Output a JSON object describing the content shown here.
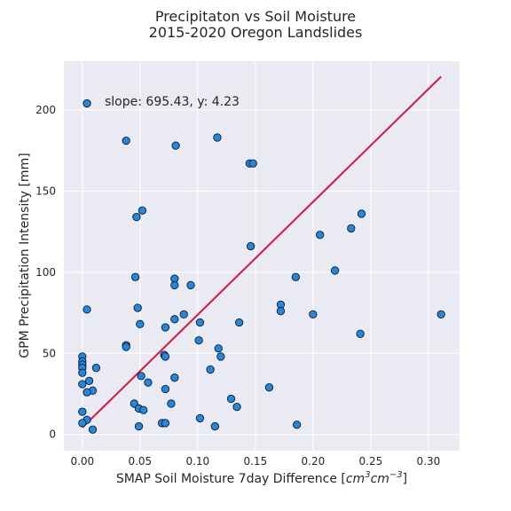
{
  "chart_data": {
    "type": "scatter",
    "title_line1": "Precipitaton vs Soil Moisture",
    "title_line2": "2015-2020 Oregon Landslides",
    "xlabel_text": "SMAP Soil Moisture 7day Difference [",
    "xlabel_unit": "cm",
    "xlabel_unit_sup1": "3",
    "xlabel_unit2": "cm",
    "xlabel_unit_sup2": "−3",
    "xlabel_end": "]",
    "ylabel": "GPM Precipitation Intensity [mm]",
    "annotation": "slope: 695.43, y: 4.23",
    "xlim": [
      -0.016,
      0.327
    ],
    "ylim": [
      -10,
      230
    ],
    "x_ticks": [
      0.0,
      0.05,
      0.1,
      0.15,
      0.2,
      0.25,
      0.3
    ],
    "x_tick_labels": [
      "0.00",
      "0.05",
      "0.10",
      "0.15",
      "0.20",
      "0.25",
      "0.30"
    ],
    "y_ticks": [
      0,
      50,
      100,
      150,
      200
    ],
    "y_tick_labels": [
      "0",
      "50",
      "100",
      "150",
      "200"
    ],
    "grid": true,
    "colors": {
      "background": "#eaeaf2",
      "grid": "#ffffff",
      "point_fill": "#1e88e5",
      "point_edge": "#1a1a1a",
      "fit_line": "#dc143c"
    },
    "fit_line": {
      "slope": 695.43,
      "intercept": 4.23,
      "x_range": [
        0.0,
        0.311
      ]
    },
    "points": [
      [
        0.004,
        204
      ],
      [
        0.038,
        181
      ],
      [
        0.081,
        178
      ],
      [
        0.117,
        183
      ],
      [
        0.145,
        167
      ],
      [
        0.148,
        167
      ],
      [
        0.047,
        134
      ],
      [
        0.052,
        138
      ],
      [
        0.242,
        136
      ],
      [
        0.146,
        116
      ],
      [
        0.206,
        123
      ],
      [
        0.233,
        127
      ],
      [
        0.219,
        101
      ],
      [
        0.185,
        97
      ],
      [
        0.046,
        97
      ],
      [
        0.08,
        96
      ],
      [
        0.08,
        92
      ],
      [
        0.094,
        92
      ],
      [
        0.172,
        80
      ],
      [
        0.172,
        76
      ],
      [
        0.2,
        74
      ],
      [
        0.311,
        74
      ],
      [
        0.004,
        77
      ],
      [
        0.048,
        78
      ],
      [
        0.088,
        74
      ],
      [
        0.08,
        71
      ],
      [
        0.102,
        69
      ],
      [
        0.136,
        69
      ],
      [
        0.05,
        68
      ],
      [
        0.072,
        66
      ],
      [
        0.241,
        62
      ],
      [
        0.101,
        58
      ],
      [
        0.038,
        55
      ],
      [
        0.038,
        54
      ],
      [
        0.118,
        53
      ],
      [
        0.12,
        48
      ],
      [
        0.071,
        49
      ],
      [
        0.072,
        48
      ],
      [
        0.0,
        48
      ],
      [
        0.0,
        45
      ],
      [
        0.0,
        43
      ],
      [
        0.0,
        41
      ],
      [
        0.012,
        41
      ],
      [
        0.0,
        38
      ],
      [
        0.111,
        40
      ],
      [
        0.051,
        36
      ],
      [
        0.08,
        35
      ],
      [
        0.006,
        33
      ],
      [
        0.057,
        32
      ],
      [
        0.0,
        31
      ],
      [
        0.009,
        27
      ],
      [
        0.072,
        28
      ],
      [
        0.162,
        29
      ],
      [
        0.004,
        26
      ],
      [
        0.129,
        22
      ],
      [
        0.045,
        19
      ],
      [
        0.077,
        19
      ],
      [
        0.134,
        17
      ],
      [
        0.049,
        16
      ],
      [
        0.053,
        15
      ],
      [
        0.0,
        14
      ],
      [
        0.102,
        10
      ],
      [
        0.004,
        9
      ],
      [
        0.0,
        7
      ],
      [
        0.069,
        7
      ],
      [
        0.072,
        7
      ],
      [
        0.049,
        5
      ],
      [
        0.115,
        5
      ],
      [
        0.186,
        6
      ],
      [
        0.009,
        3
      ]
    ]
  }
}
